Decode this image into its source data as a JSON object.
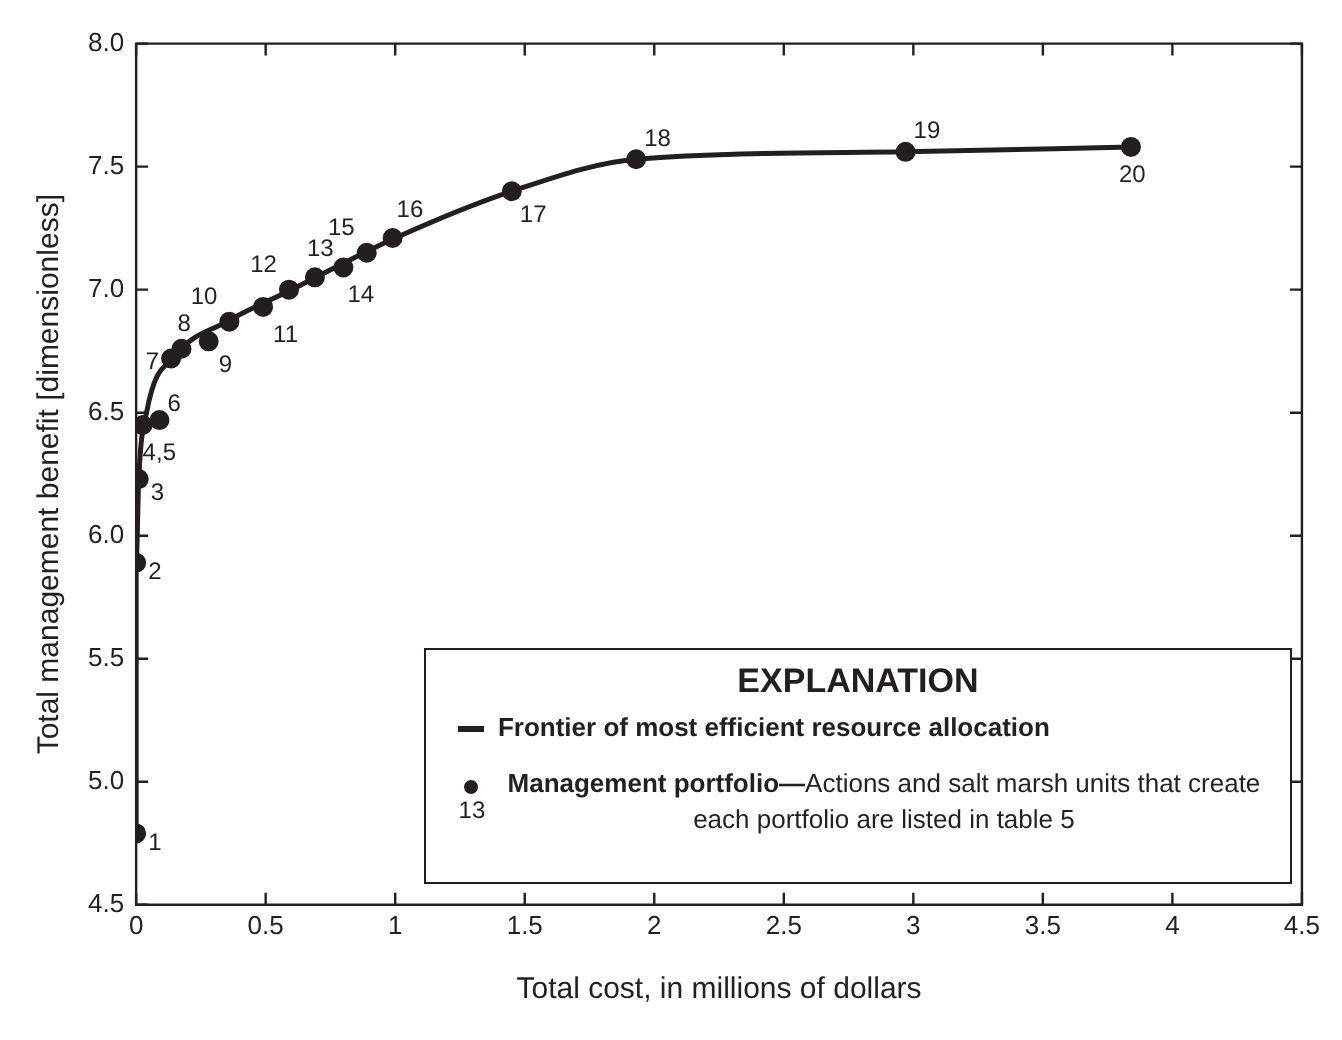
{
  "chart_data": {
    "type": "scatter",
    "xlabel": "Total cost, in millions of dollars",
    "ylabel": "Total management benefit [dimensionless]",
    "legend_title": "EXPLANATION",
    "legend": "bottom right",
    "grid": false,
    "marker": "circle",
    "xlim": [
      0,
      4.5
    ],
    "xticks": [
      0,
      0.5,
      1,
      1.5,
      2,
      2.5,
      3,
      3.5,
      4,
      4.5
    ],
    "ylim": [
      4.5,
      8.0
    ],
    "yticks": [
      {
        "value": 4.5,
        "label": "4.5"
      },
      {
        "value": 5.0,
        "label": "5.0"
      },
      {
        "value": 5.5,
        "label": "5.5"
      },
      {
        "value": 6.0,
        "label": "6.0"
      },
      {
        "value": 6.5,
        "label": "6.5"
      },
      {
        "value": 7.0,
        "label": "7.0"
      },
      {
        "value": 7.5,
        "label": "7.5"
      },
      {
        "value": 8.0,
        "label": "8.0"
      }
    ],
    "series": [
      {
        "name": "Frontier of most efficient resource allocation",
        "type": "line",
        "line_style": "solid",
        "marker": "none",
        "color": "#231f20",
        "x": [
          0,
          0,
          0.01,
          0.04,
          0.15,
          0.35,
          0.6,
          1.0,
          1.45,
          1.93,
          2.97,
          3.84
        ],
        "values": [
          4.79,
          5.89,
          6.23,
          6.5,
          6.73,
          6.87,
          7.0,
          7.21,
          7.4,
          7.53,
          7.56,
          7.58
        ]
      },
      {
        "name": "Management portfolio—Actions and salt marsh units that create each portfolio are listed in table 5",
        "type": "scatter",
        "color": "#231f20",
        "x": [
          0,
          0,
          0.01,
          0.025,
          null,
          0.09,
          0.135,
          0.175,
          0.28,
          0.36,
          0.49,
          0.59,
          0.69,
          0.8,
          0.89,
          0.99,
          1.45,
          1.93,
          2.97,
          3.84
        ],
        "values": [
          4.79,
          5.89,
          6.23,
          6.45,
          null,
          6.47,
          6.72,
          6.76,
          6.79,
          6.87,
          6.93,
          7.0,
          7.05,
          7.09,
          7.15,
          7.21,
          7.4,
          7.53,
          7.56,
          7.58
        ]
      }
    ],
    "annotations": [
      {
        "text": "1",
        "x": 0,
        "y": 4.79
      },
      {
        "text": "2",
        "x": 0,
        "y": 5.89
      },
      {
        "text": "3",
        "x": 0.01,
        "y": 6.23
      },
      {
        "text": "4,5",
        "x": 0.025,
        "y": 6.45
      },
      {
        "text": "6",
        "x": 0.09,
        "y": 6.47
      },
      {
        "text": "7",
        "x": 0.135,
        "y": 6.72
      },
      {
        "text": "8",
        "x": 0.175,
        "y": 6.76
      },
      {
        "text": "9",
        "x": 0.28,
        "y": 6.79
      },
      {
        "text": "10",
        "x": 0.36,
        "y": 6.87
      },
      {
        "text": "11",
        "x": 0.49,
        "y": 6.93
      },
      {
        "text": "12",
        "x": 0.59,
        "y": 7.0
      },
      {
        "text": "13",
        "x": 0.69,
        "y": 7.05
      },
      {
        "text": "14",
        "x": 0.8,
        "y": 7.09
      },
      {
        "text": "15",
        "x": 0.89,
        "y": 7.15
      },
      {
        "text": "16",
        "x": 0.99,
        "y": 7.21
      },
      {
        "text": "17",
        "x": 1.45,
        "y": 7.4
      },
      {
        "text": "18",
        "x": 1.93,
        "y": 7.53
      },
      {
        "text": "19",
        "x": 2.97,
        "y": 7.56
      },
      {
        "text": "20",
        "x": 3.84,
        "y": 7.58
      },
      "13"
    ]
  }
}
